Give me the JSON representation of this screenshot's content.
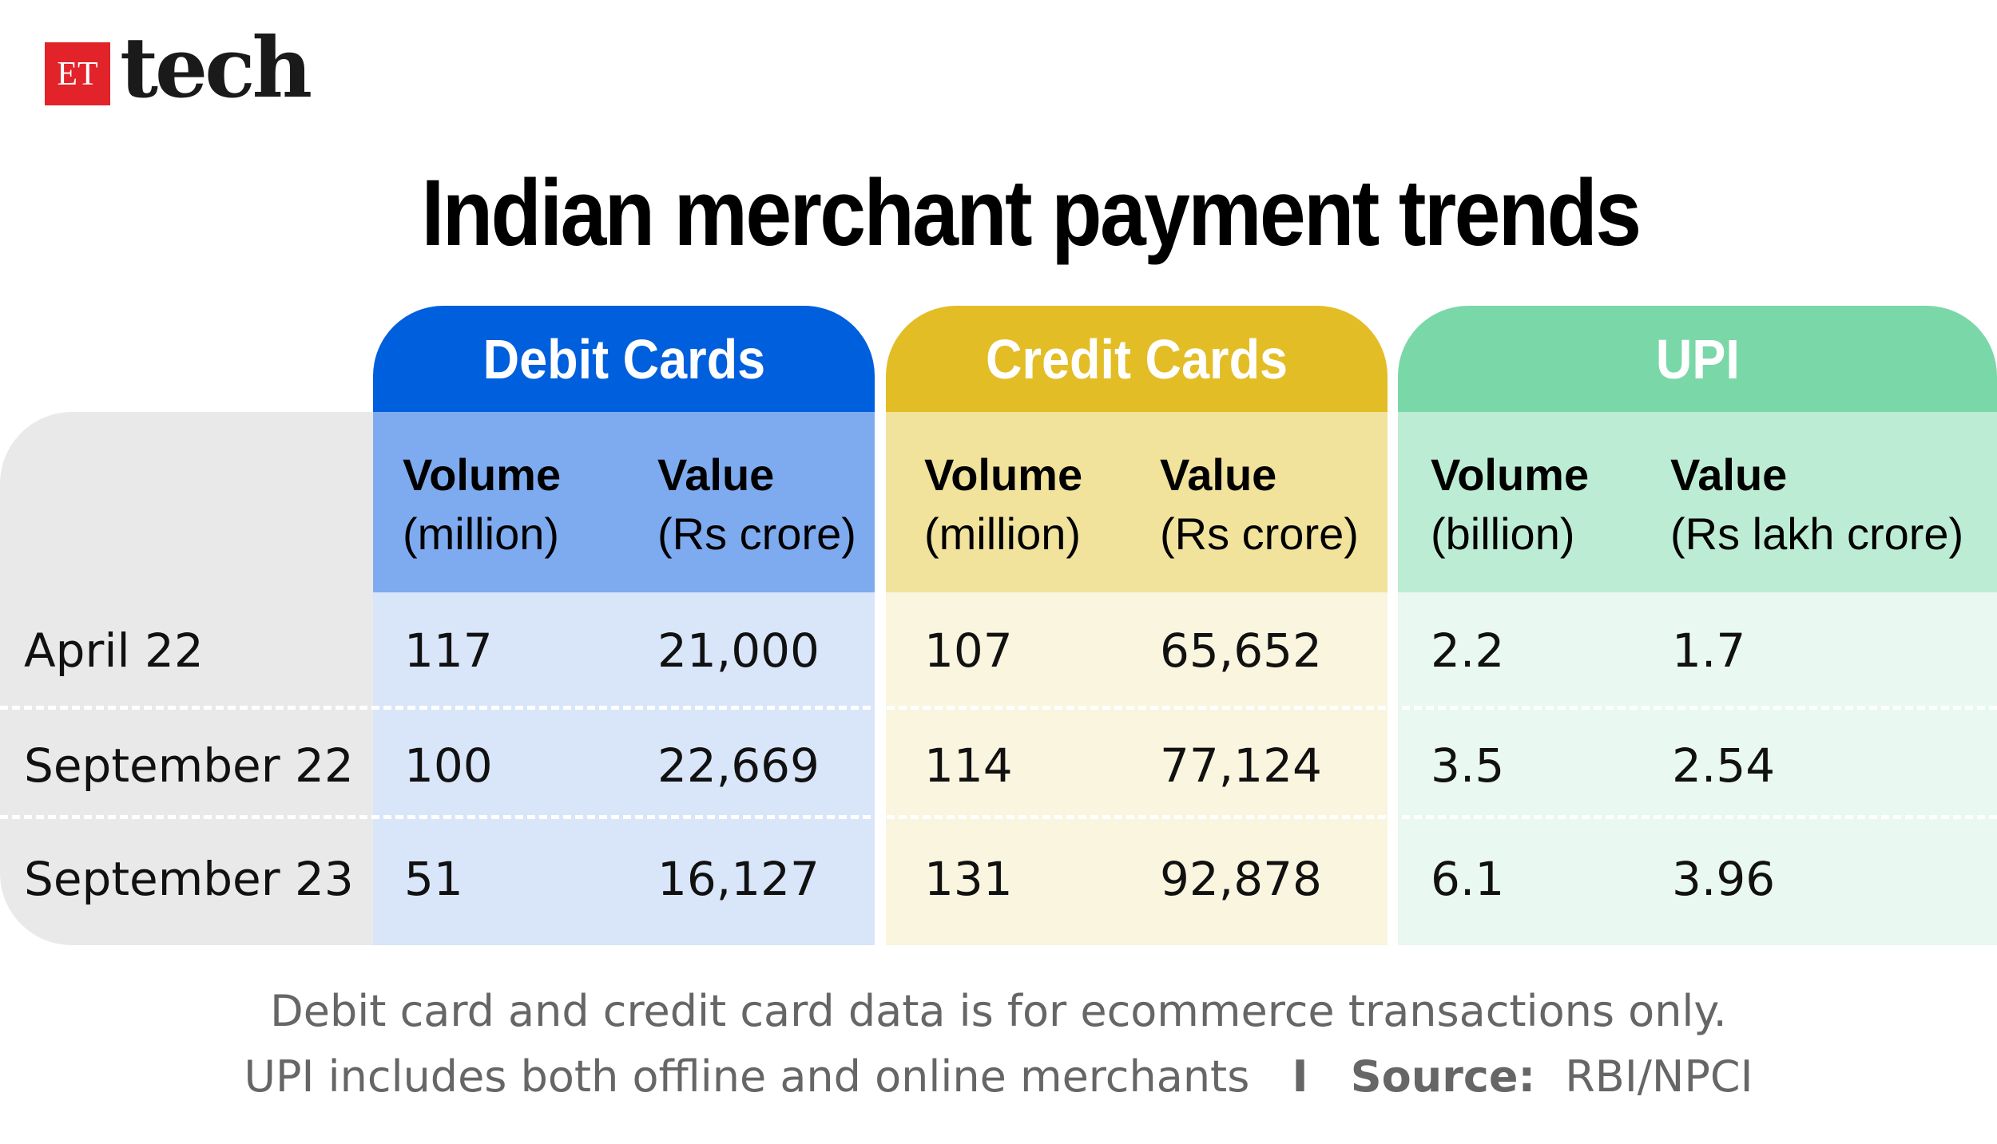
{
  "brand": {
    "et": "ET",
    "tech": "tech"
  },
  "chart_data": {
    "type": "table",
    "title": "Indian merchant payment trends",
    "groups": [
      {
        "name": "Debit Cards",
        "color": "#005fdc",
        "sub_color": "#7eabef",
        "body_color": "#d9e6f9",
        "columns": [
          {
            "label": "Volume",
            "unit": "(million)"
          },
          {
            "label": "Value",
            "unit": "(Rs crore)"
          }
        ]
      },
      {
        "name": "Credit Cards",
        "color": "#e3bd26",
        "sub_color": "#f1e29c",
        "body_color": "#faf5df",
        "columns": [
          {
            "label": "Volume",
            "unit": "(million)"
          },
          {
            "label": "Value",
            "unit": "(Rs crore)"
          }
        ]
      },
      {
        "name": "UPI",
        "color": "#7ad8a8",
        "sub_color": "#bdecd4",
        "body_color": "#e9f8f0",
        "columns": [
          {
            "label": "Volume",
            "unit": "(billion)"
          },
          {
            "label": "Value",
            "unit": "(Rs lakh crore)"
          }
        ]
      }
    ],
    "rows": [
      {
        "label": "April 22",
        "values": [
          "117",
          "21,000",
          "107",
          "65,652",
          "2.2",
          "1.7"
        ]
      },
      {
        "label": "September 22",
        "values": [
          "100",
          "22,669",
          "114",
          "77,124",
          "3.5",
          "2.54"
        ]
      },
      {
        "label": "September 23",
        "values": [
          "51",
          "16,127",
          "131",
          "92,878",
          "6.1",
          "3.96"
        ]
      }
    ]
  },
  "footnote": {
    "line1": "Debit card and credit card data is for ecommerce transactions only.",
    "line2": "UPI includes both offline and online merchants",
    "separator": "I",
    "source_label": "Source:",
    "source": "RBI/NPCI"
  }
}
